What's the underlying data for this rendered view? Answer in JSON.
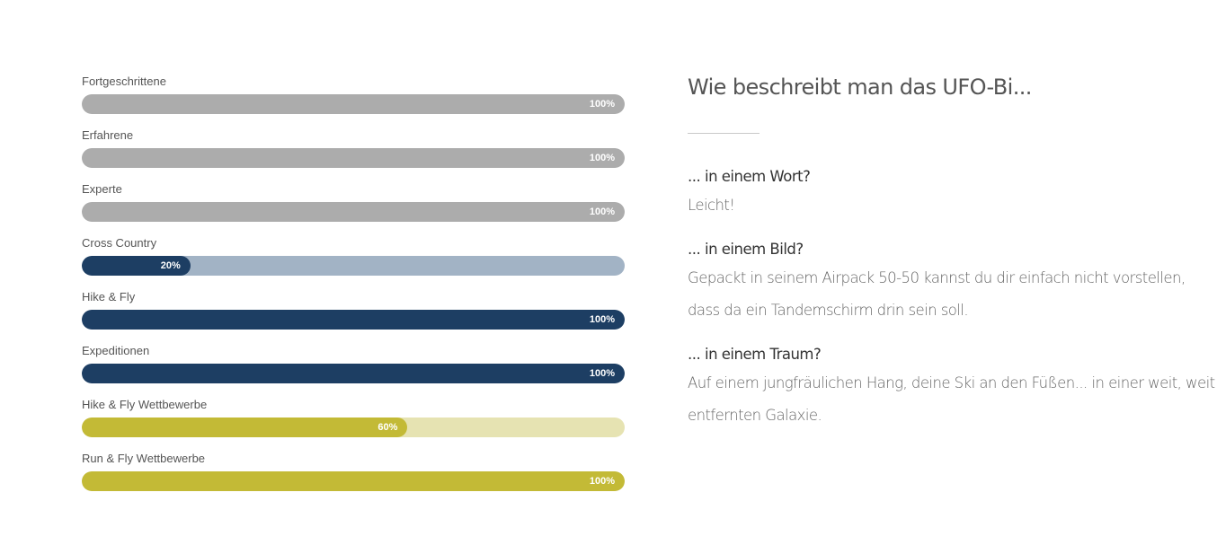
{
  "skills": [
    {
      "label": "Fortgeschrittene",
      "value_label": "100%",
      "value": 100,
      "fill_color": "#acacac",
      "track_color": "#dcdcdc"
    },
    {
      "label": "Erfahrene",
      "value_label": "100%",
      "value": 100,
      "fill_color": "#acacac",
      "track_color": "#dcdcdc"
    },
    {
      "label": "Experte",
      "value_label": "100%",
      "value": 100,
      "fill_color": "#acacac",
      "track_color": "#dcdcdc"
    },
    {
      "label": "Cross Country",
      "value_label": "20%",
      "value": 20,
      "fill_color": "#1d3e63",
      "track_color": "#a2b3c5"
    },
    {
      "label": "Hike & Fly",
      "value_label": "100%",
      "value": 100,
      "fill_color": "#1d3e63",
      "track_color": "#a2b3c5"
    },
    {
      "label": "Expeditionen",
      "value_label": "100%",
      "value": 100,
      "fill_color": "#1d3e63",
      "track_color": "#a2b3c5"
    },
    {
      "label": "Hike & Fly Wettbewerbe",
      "value_label": "60%",
      "value": 60,
      "fill_color": "#c3ba36",
      "track_color": "#e6e3b2"
    },
    {
      "label": "Run & Fly Wettbewerbe",
      "value_label": "100%",
      "value": 100,
      "fill_color": "#c3ba36",
      "track_color": "#e6e3b2"
    }
  ],
  "description": {
    "title": "Wie beschreibt man das UFO-Bi...",
    "sections": [
      {
        "question": "... in einem Wort?",
        "answer": "Leicht!"
      },
      {
        "question": "... in einem Bild?",
        "answer": "Gepackt in seinem Airpack 50-50 kannst du dir einfach nicht vorstellen, dass da ein Tandemschirm drin sein soll."
      },
      {
        "question": "... in einem Traum?",
        "answer": "Auf einem jungfräulichen Hang, deine Ski an den Füßen... in einer weit, weit entfernten Galaxie."
      }
    ]
  }
}
